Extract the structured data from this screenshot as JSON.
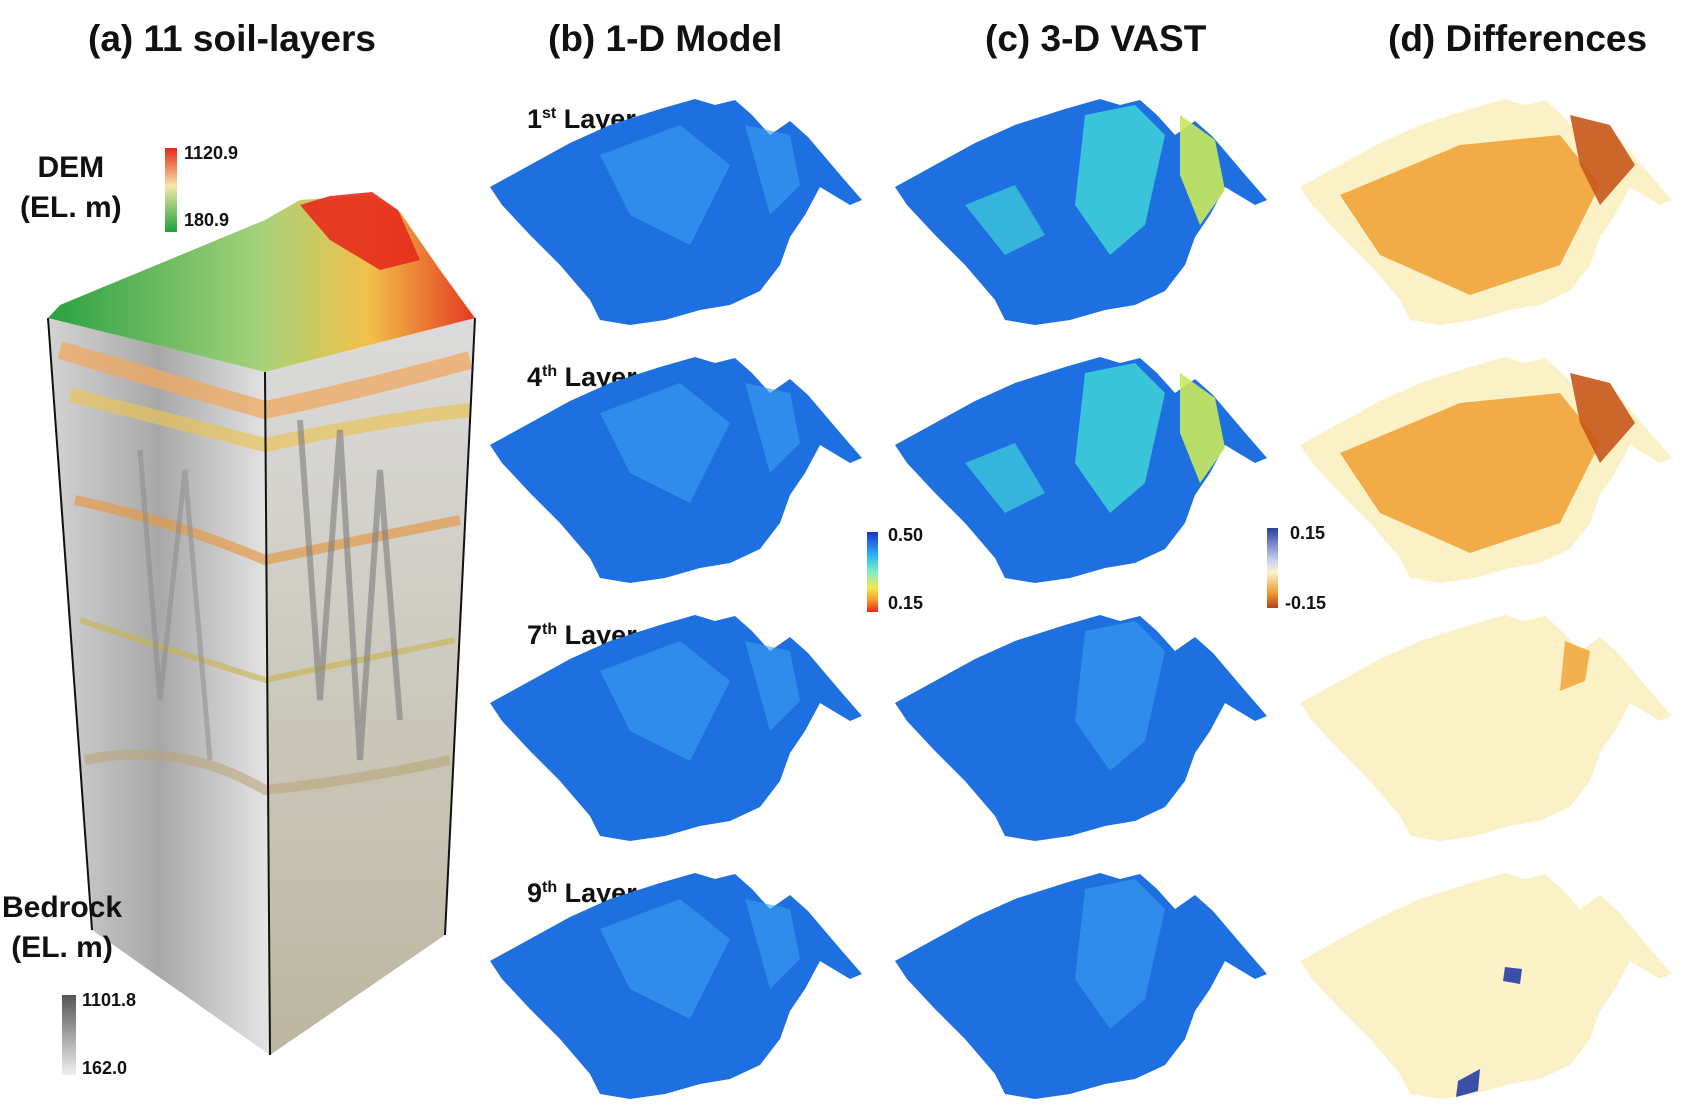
{
  "panels": {
    "a": "(a) 11 soil-layers",
    "b": "(b) 1-D Model",
    "c": "(c) 3-D VAST",
    "d": "(d) Differences"
  },
  "dem": {
    "label_1": "DEM",
    "label_2": "(EL. m)",
    "max": "1120.9",
    "min": "180.9"
  },
  "bedrock": {
    "label_1": "Bedrock",
    "label_2": "(EL. m)",
    "max": "1101.8",
    "min": "162.0"
  },
  "layers": [
    {
      "num": "1",
      "sup": "st",
      "word": "Layer"
    },
    {
      "num": "4",
      "sup": "th",
      "word": "Layer"
    },
    {
      "num": "7",
      "sup": "th",
      "word": "Layer"
    },
    {
      "num": "9",
      "sup": "th",
      "word": "Layer"
    }
  ],
  "model_scale": {
    "max": "0.50",
    "min": "0.15"
  },
  "diff_scale": {
    "max": "0.15",
    "min": "-0.15"
  },
  "colors": {
    "model_base": "#1e6fe0",
    "model_light": "#3aa0f0",
    "vast_cyan": "#3fd3d8",
    "vast_yellow": "#c8e85a",
    "diff_base": "#fbf1c6",
    "diff_orange": "#f0a030",
    "diff_dark": "#c8561a",
    "diff_blue": "#3a4fa8"
  }
}
